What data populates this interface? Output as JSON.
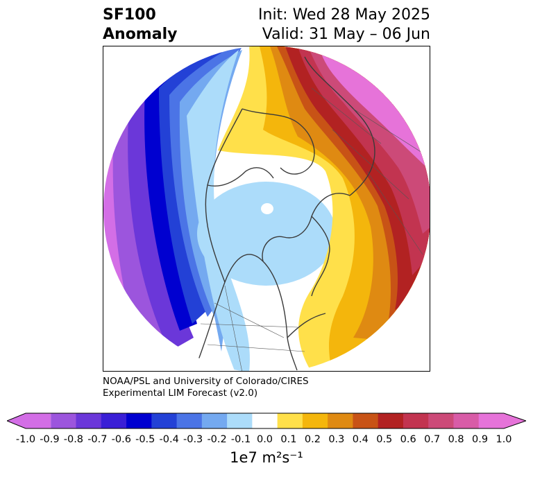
{
  "title": {
    "left_line1": "SF100",
    "left_line2": "Anomaly",
    "right_line1": "Init: Wed 28 May 2025",
    "right_line2": "Valid: 31 May – 06 Jun"
  },
  "credit": {
    "line1": "NOAA/PSL and University of Colorado/CIRES",
    "line2": "Experimental LIM Forecast (v2.0)"
  },
  "colorbar": {
    "label": "1e7 m²s⁻¹",
    "ticks": [
      "-1.0",
      "-0.9",
      "-0.8",
      "-0.7",
      "-0.6",
      "-0.5",
      "-0.4",
      "-0.3",
      "-0.2",
      "-0.1",
      "0.0",
      "0.1",
      "0.2",
      "0.3",
      "0.4",
      "0.5",
      "0.6",
      "0.7",
      "0.8",
      "0.9",
      "1.0"
    ],
    "colors": [
      "#d36ee6",
      "#9c55dd",
      "#6b37d9",
      "#3a1fd6",
      "#0000d0",
      "#2341d6",
      "#4b74e6",
      "#74a9f0",
      "#acdcfa",
      "#ffffff",
      "#ffe04a",
      "#f4b60c",
      "#df8a12",
      "#c85316",
      "#b22222",
      "#c23450",
      "#cc4a78",
      "#d85ca7",
      "#e673d9"
    ]
  },
  "map": {
    "projection": "north-polar-stereographic",
    "field": "100 hPa streamfunction anomaly",
    "positive_center": "Eurasia / Siberia",
    "negative_center": "North Pacific"
  }
}
